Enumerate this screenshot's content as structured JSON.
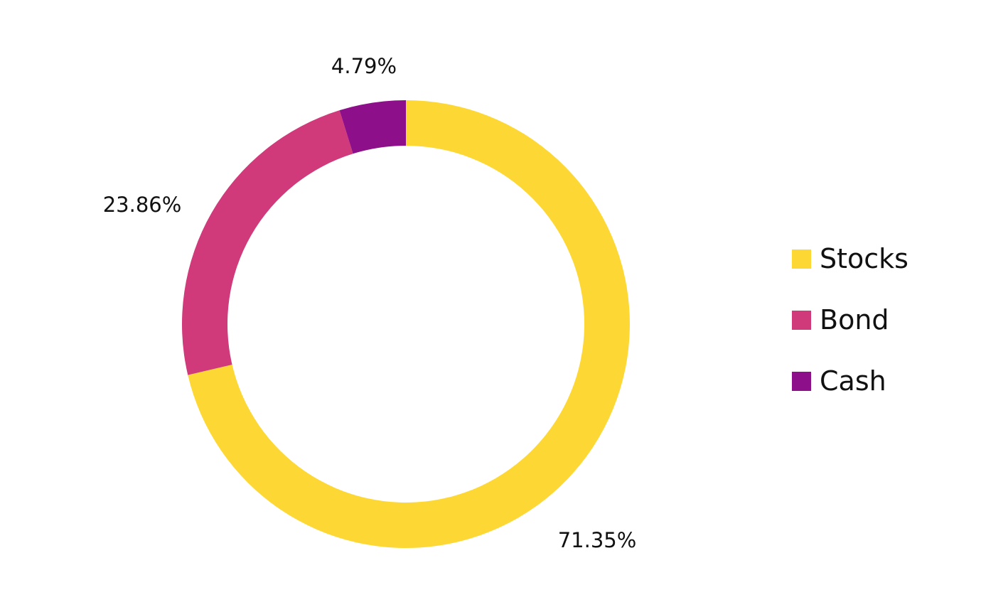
{
  "chart_data": {
    "type": "pie",
    "variant": "donut",
    "categories": [
      "Stocks",
      "Bond",
      "Cash"
    ],
    "values": [
      71.35,
      23.86,
      4.79
    ],
    "data_labels": [
      "71.35%",
      "23.86%",
      "4.79%"
    ],
    "colors": [
      "#FDD835",
      "#D0397A",
      "#8E0F8A"
    ],
    "legend": {
      "placement": "right",
      "items": [
        {
          "label": "Stocks",
          "color": "#FDD835"
        },
        {
          "label": "Bond",
          "color": "#D0397A"
        },
        {
          "label": "Cash",
          "color": "#8E0F8A"
        }
      ]
    },
    "start": "12 o'clock",
    "direction": "clockwise"
  }
}
